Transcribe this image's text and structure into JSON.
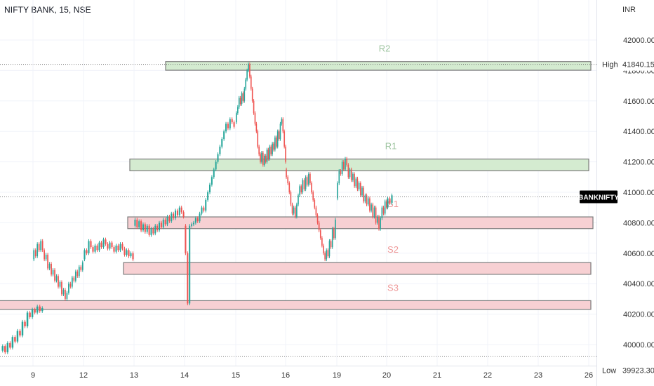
{
  "header": {
    "title": "NIFTY BANK, 15, NSE",
    "unit": "INR"
  },
  "chart_data": {
    "type": "candlestick",
    "symbol_label": "BANKNIFTY",
    "last_value": 40970,
    "ylim": [
      39900,
      42130
    ],
    "y_ticks": [
      {
        "value": 40000,
        "label": "40000.00"
      },
      {
        "value": 40200,
        "label": "40200.00"
      },
      {
        "value": 40400,
        "label": "40400.00"
      },
      {
        "value": 40600,
        "label": "40600.00"
      },
      {
        "value": 40800,
        "label": "40800.00"
      },
      {
        "value": 41000,
        "label": "41000.00"
      },
      {
        "value": 41200,
        "label": "41200.00"
      },
      {
        "value": 41400,
        "label": "41400.00"
      },
      {
        "value": 41600,
        "label": "41600.00"
      },
      {
        "value": 41800,
        "label": "41800.00"
      },
      {
        "value": 42000,
        "label": "42000.00"
      }
    ],
    "x_ticks": [
      "9",
      "12",
      "13",
      "14",
      "15",
      "16",
      "19",
      "20",
      "21",
      "22",
      "23",
      "26"
    ],
    "high": {
      "label": "High",
      "value": "41840.15"
    },
    "low": {
      "label": "Low",
      "value": "39923.30"
    },
    "zones": [
      {
        "name": "R2",
        "from": 41820,
        "to": 41840,
        "start_day": "14",
        "end_day": "26",
        "kind": "resistance"
      },
      {
        "name": "R1",
        "from": 41160,
        "to": 41200,
        "start_day": "13",
        "end_day": "26",
        "kind": "resistance"
      },
      {
        "name": "S1",
        "from": 40780,
        "to": 40820,
        "start_day": "13",
        "end_day": "26",
        "kind": "support"
      },
      {
        "name": "S2",
        "from": 40480,
        "to": 40520,
        "start_day": "13",
        "end_day": "26",
        "kind": "support"
      },
      {
        "name": "S3",
        "from": 40250,
        "to": 40270,
        "start_day": "8",
        "end_day": "26",
        "kind": "support"
      }
    ],
    "series": [
      {
        "day": "8",
        "path": [
          39960,
          39990,
          39950,
          40010,
          39980,
          40050,
          40020,
          40090,
          40060,
          40150,
          40120,
          40210,
          40180,
          40230,
          40210,
          40250,
          40220,
          40240
        ]
      },
      {
        "day": "9",
        "path": [
          40560,
          40620,
          40580,
          40660,
          40620,
          40680,
          40620,
          40560,
          40590,
          40500,
          40530,
          40460,
          40490,
          40420,
          40450,
          40380,
          40410,
          40330,
          40360,
          40300,
          40340,
          40400,
          40380,
          40440,
          40420,
          40480,
          40450,
          40510,
          40490,
          40540
        ]
      },
      {
        "day": "12",
        "path": [
          40560,
          40620,
          40600,
          40680,
          40640,
          40610,
          40650,
          40620,
          40670,
          40640,
          40690,
          40660,
          40630,
          40670,
          40640,
          40610,
          40650,
          40620,
          40660,
          40630,
          40590,
          40620,
          40580,
          40600,
          40560
        ]
      },
      {
        "day": "13",
        "path": [
          40780,
          40820,
          40770,
          40810,
          40750,
          40790,
          40740,
          40780,
          40720,
          40760,
          40730,
          40780,
          40750,
          40800,
          40770,
          40820,
          40790,
          40840,
          40810,
          40860,
          40830,
          40880,
          40850,
          40900,
          40870,
          40840
        ]
      },
      {
        "day": "14",
        "path": [
          40780,
          40600,
          40270,
          40780,
          40790,
          40800,
          40830,
          40810,
          40860,
          40900,
          40880,
          40950,
          41000,
          41050,
          41100,
          41150,
          41200,
          41250,
          41300,
          41350,
          41400,
          41450,
          41420,
          41480,
          41460,
          41430
        ]
      },
      {
        "day": "15",
        "path": [
          41460,
          41520,
          41560,
          41620,
          41580,
          41650,
          41600,
          41680,
          41740,
          41800,
          41840,
          41760,
          41680,
          41600,
          41520,
          41450,
          41400,
          41300,
          41250,
          41200,
          41260,
          41180,
          41240,
          41200,
          41280,
          41220,
          41300,
          41250,
          41320,
          41280,
          41360,
          41300,
          41400,
          41350,
          41450,
          41480,
          41400,
          41300,
          41200
        ]
      },
      {
        "day": "16",
        "path": [
          41150,
          41100,
          41060,
          41000,
          40920,
          40860,
          40900,
          40840,
          40920,
          40980,
          41040,
          41000,
          41080,
          41020,
          41100,
          41050,
          41120,
          41060,
          41000,
          40950,
          40900,
          40850,
          40800,
          40750,
          40700,
          40650,
          40600,
          40560,
          40620,
          40580,
          40680,
          40640,
          40760,
          40700,
          40820
        ]
      },
      {
        "day": "19",
        "path": [
          40960,
          41060,
          41140,
          41120,
          41200,
          41150,
          41220,
          41180,
          41100,
          41150,
          41080,
          41120,
          41040,
          41090,
          41020,
          41060,
          40980,
          41030,
          40940,
          40980,
          40920,
          40960,
          40880,
          40920,
          40840,
          40900,
          40800,
          40840,
          40760,
          40830,
          40900,
          40860,
          40940,
          40900
        ]
      },
      {
        "day": "20",
        "path": [
          40900,
          40960,
          40930,
          40980
        ]
      }
    ]
  }
}
